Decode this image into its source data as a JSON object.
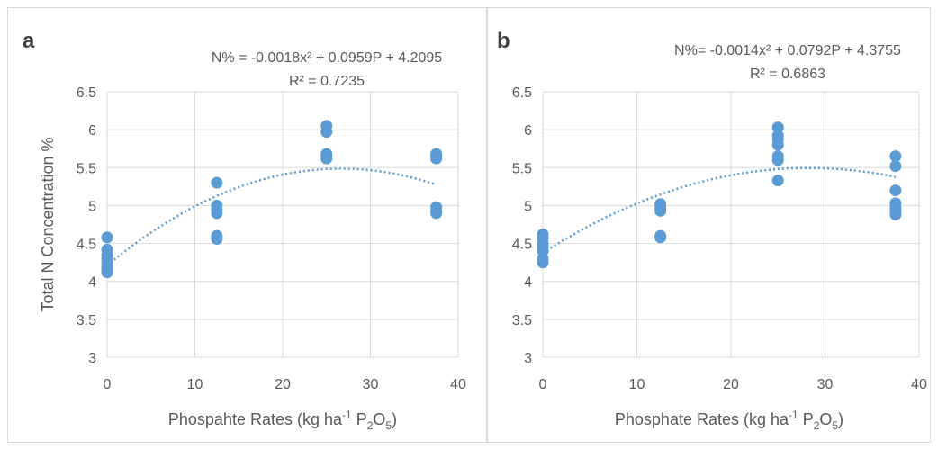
{
  "chart_data": [
    {
      "type": "scatter",
      "panel_label": "a",
      "equation": "N% = -0.0018x² + 0.0959P + 4.2095",
      "r_squared": "R² = 0.7235",
      "xlabel_prefix": "Phospahte Rates (kg ha",
      "xlabel_sup": "-1",
      "xlabel_mid": " P",
      "xlabel_sub1": "2",
      "xlabel_o": "O",
      "xlabel_sub2": "5",
      "xlabel_suffix": ")",
      "ylabel": "Total N Concentration %",
      "xlim": [
        0,
        40
      ],
      "ylim": [
        3,
        6.5
      ],
      "xticks": [
        "0",
        "10",
        "20",
        "30",
        "40"
      ],
      "yticks": [
        "3",
        "3.5",
        "4",
        "4.5",
        "5",
        "5.5",
        "6",
        "6.5"
      ],
      "grid": true,
      "trendline": {
        "type": "polynomial",
        "a": -0.0018,
        "b": 0.0959,
        "c": 4.2095,
        "x_range": [
          0,
          37.5
        ]
      },
      "marker_color": "#5b9bd5",
      "points": [
        {
          "x": 0,
          "y": 4.58
        },
        {
          "x": 0,
          "y": 4.42
        },
        {
          "x": 0,
          "y": 4.35
        },
        {
          "x": 0,
          "y": 4.3
        },
        {
          "x": 0,
          "y": 4.25
        },
        {
          "x": 0,
          "y": 4.2
        },
        {
          "x": 0,
          "y": 4.15
        },
        {
          "x": 0,
          "y": 4.12
        },
        {
          "x": 12.5,
          "y": 5.3
        },
        {
          "x": 12.5,
          "y": 5.0
        },
        {
          "x": 12.5,
          "y": 4.95
        },
        {
          "x": 12.5,
          "y": 4.9
        },
        {
          "x": 12.5,
          "y": 4.6
        },
        {
          "x": 12.5,
          "y": 4.56
        },
        {
          "x": 25,
          "y": 6.05
        },
        {
          "x": 25,
          "y": 5.97
        },
        {
          "x": 25,
          "y": 5.68
        },
        {
          "x": 25,
          "y": 5.65
        },
        {
          "x": 25,
          "y": 5.62
        },
        {
          "x": 37.5,
          "y": 5.68
        },
        {
          "x": 37.5,
          "y": 5.65
        },
        {
          "x": 37.5,
          "y": 5.62
        },
        {
          "x": 37.5,
          "y": 4.98
        },
        {
          "x": 37.5,
          "y": 4.93
        },
        {
          "x": 37.5,
          "y": 4.9
        }
      ]
    },
    {
      "type": "scatter",
      "panel_label": "b",
      "equation": "N%= -0.0014x² + 0.0792P + 4.3755",
      "r_squared": "R² = 0.6863",
      "xlabel_prefix": "Phosphate Rates (kg ha",
      "xlabel_sup": "-1",
      "xlabel_mid": " P",
      "xlabel_sub1": "2",
      "xlabel_o": "O",
      "xlabel_sub2": "5",
      "xlabel_suffix": ")",
      "ylabel": "",
      "xlim": [
        0,
        40
      ],
      "ylim": [
        3,
        6.5
      ],
      "xticks": [
        "0",
        "10",
        "20",
        "30",
        "40"
      ],
      "yticks": [
        "3",
        "3.5",
        "4",
        "4.5",
        "5",
        "5.5",
        "6",
        "6.5"
      ],
      "grid": true,
      "trendline": {
        "type": "polynomial",
        "a": -0.0014,
        "b": 0.0792,
        "c": 4.3755,
        "x_range": [
          0,
          37.5
        ]
      },
      "marker_color": "#5b9bd5",
      "points": [
        {
          "x": 0,
          "y": 4.62
        },
        {
          "x": 0,
          "y": 4.57
        },
        {
          "x": 0,
          "y": 4.5
        },
        {
          "x": 0,
          "y": 4.45
        },
        {
          "x": 0,
          "y": 4.4
        },
        {
          "x": 0,
          "y": 4.3
        },
        {
          "x": 0,
          "y": 4.25
        },
        {
          "x": 12.5,
          "y": 5.02
        },
        {
          "x": 12.5,
          "y": 4.97
        },
        {
          "x": 12.5,
          "y": 4.93
        },
        {
          "x": 12.5,
          "y": 4.6
        },
        {
          "x": 12.5,
          "y": 4.58
        },
        {
          "x": 25,
          "y": 6.03
        },
        {
          "x": 25,
          "y": 5.92
        },
        {
          "x": 25,
          "y": 5.87
        },
        {
          "x": 25,
          "y": 5.8
        },
        {
          "x": 25,
          "y": 5.65
        },
        {
          "x": 25,
          "y": 5.6
        },
        {
          "x": 25,
          "y": 5.33
        },
        {
          "x": 37.5,
          "y": 5.65
        },
        {
          "x": 37.5,
          "y": 5.52
        },
        {
          "x": 37.5,
          "y": 5.2
        },
        {
          "x": 37.5,
          "y": 5.03
        },
        {
          "x": 37.5,
          "y": 4.97
        },
        {
          "x": 37.5,
          "y": 4.92
        },
        {
          "x": 37.5,
          "y": 4.88
        }
      ]
    }
  ]
}
